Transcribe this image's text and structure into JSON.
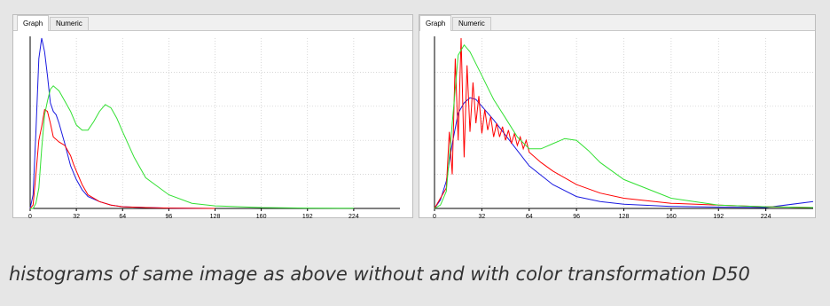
{
  "panels": [
    {
      "tabs": [
        {
          "label": "Graph",
          "active": true
        },
        {
          "label": "Numeric",
          "active": false
        }
      ]
    },
    {
      "tabs": [
        {
          "label": "Graph",
          "active": true
        },
        {
          "label": "Numeric",
          "active": false
        }
      ]
    }
  ],
  "caption": "histograms of same image as above without and with color transformation D50",
  "colors": {
    "red": "#ff0000",
    "green": "#33e033",
    "blue": "#1a1ae0",
    "grid": "#c8c8c8"
  },
  "chart_data": [
    {
      "type": "line",
      "xlim": [
        0,
        256
      ],
      "ylim": [
        0,
        100
      ],
      "xticks": [
        0,
        32,
        64,
        96,
        128,
        160,
        192,
        224
      ],
      "grid": true,
      "series": [
        {
          "color": "blue",
          "x": [
            0,
            2,
            4,
            6,
            8,
            10,
            12,
            14,
            16,
            18,
            20,
            24,
            28,
            32,
            36,
            40,
            48,
            56,
            64,
            80,
            96,
            128
          ],
          "y": [
            0,
            8,
            45,
            88,
            100,
            92,
            78,
            62,
            57,
            55,
            50,
            38,
            25,
            17,
            11,
            7,
            4,
            2,
            1,
            0.5,
            0.2,
            0
          ]
        },
        {
          "color": "red",
          "x": [
            0,
            2,
            4,
            6,
            8,
            10,
            12,
            14,
            16,
            20,
            24,
            28,
            30,
            32,
            36,
            40,
            48,
            56,
            64,
            80,
            96,
            128
          ],
          "y": [
            0,
            2,
            20,
            40,
            48,
            58,
            57,
            50,
            42,
            39,
            37,
            31,
            26,
            22,
            14,
            8,
            4,
            2,
            1,
            0.5,
            0.2,
            0
          ]
        },
        {
          "color": "green",
          "x": [
            0,
            2,
            4,
            6,
            8,
            10,
            12,
            14,
            16,
            20,
            24,
            28,
            32,
            36,
            40,
            44,
            48,
            52,
            56,
            60,
            64,
            72,
            80,
            96,
            112,
            128,
            160,
            192,
            224
          ],
          "y": [
            0,
            0,
            3,
            12,
            35,
            55,
            63,
            70,
            72,
            69,
            63,
            57,
            49,
            46,
            46,
            51,
            57,
            61,
            59,
            53,
            45,
            30,
            18,
            8,
            3,
            1.5,
            0.5,
            0.2,
            0.1
          ]
        }
      ]
    },
    {
      "type": "line",
      "xlim": [
        0,
        256
      ],
      "ylim": [
        0,
        100
      ],
      "xticks": [
        0,
        32,
        64,
        96,
        128,
        160,
        192,
        224
      ],
      "grid": true,
      "series": [
        {
          "color": "blue",
          "x": [
            0,
            4,
            8,
            12,
            16,
            20,
            24,
            28,
            32,
            40,
            48,
            56,
            64,
            80,
            96,
            112,
            128,
            160,
            192,
            224,
            256
          ],
          "y": [
            0,
            5,
            16,
            38,
            56,
            62,
            65,
            64,
            60,
            52,
            43,
            34,
            25,
            14,
            7,
            4,
            2.5,
            1.2,
            0.8,
            0.5,
            4
          ]
        },
        {
          "color": "red",
          "x": [
            0,
            8,
            10,
            12,
            14,
            16,
            18,
            20,
            22,
            24,
            26,
            28,
            30,
            32,
            34,
            36,
            38,
            40,
            42,
            44,
            46,
            48,
            50,
            52,
            54,
            56,
            58,
            60,
            62,
            64,
            72,
            80,
            96,
            112,
            128,
            160,
            192,
            224,
            256
          ],
          "y": [
            0,
            12,
            45,
            20,
            88,
            40,
            100,
            30,
            84,
            45,
            74,
            50,
            66,
            44,
            58,
            46,
            54,
            42,
            50,
            42,
            48,
            40,
            46,
            38,
            44,
            37,
            42,
            35,
            40,
            33,
            27,
            22,
            14,
            9,
            6,
            3,
            2,
            1,
            0.5
          ]
        },
        {
          "color": "green",
          "x": [
            0,
            4,
            8,
            12,
            16,
            20,
            24,
            28,
            32,
            36,
            40,
            48,
            56,
            64,
            72,
            80,
            88,
            96,
            104,
            112,
            128,
            160,
            192,
            224,
            256
          ],
          "y": [
            0,
            2,
            10,
            50,
            90,
            96,
            92,
            85,
            78,
            71,
            64,
            53,
            42,
            35,
            35,
            38,
            41,
            40,
            34,
            27,
            17,
            6,
            2,
            1,
            0.5
          ]
        }
      ]
    }
  ]
}
